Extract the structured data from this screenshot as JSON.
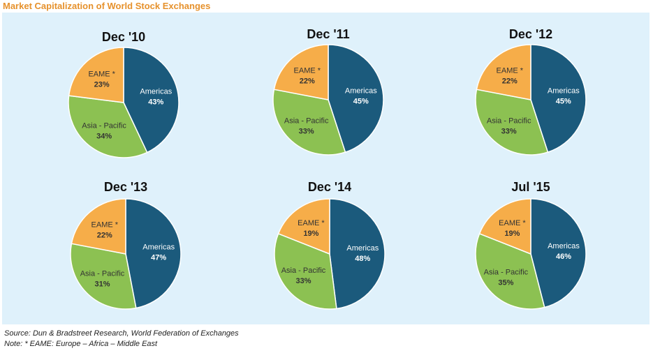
{
  "title": "Market Capitalization of World Stock Exchanges",
  "colors": {
    "americas": "#1b5a7c",
    "asia_pacific": "#8cc152",
    "eame": "#f6ad49",
    "panel": "#dff1fb",
    "title": "#e6912c"
  },
  "chart_data": [
    {
      "type": "pie",
      "title": "Dec '10",
      "slices": [
        {
          "label": "Americas",
          "value": 43,
          "display": "43%"
        },
        {
          "label": "Asia - Pacific",
          "value": 34,
          "display": "34%"
        },
        {
          "label": "EAME *",
          "value": 23,
          "display": "23%"
        }
      ]
    },
    {
      "type": "pie",
      "title": "Dec '11",
      "slices": [
        {
          "label": "Americas",
          "value": 45,
          "display": "45%"
        },
        {
          "label": "Asia - Pacific",
          "value": 33,
          "display": "33%"
        },
        {
          "label": "EAME *",
          "value": 22,
          "display": "22%"
        }
      ]
    },
    {
      "type": "pie",
      "title": "Dec '12",
      "slices": [
        {
          "label": "Americas",
          "value": 45,
          "display": "45%"
        },
        {
          "label": "Asia - Pacific",
          "value": 33,
          "display": "33%"
        },
        {
          "label": "EAME *",
          "value": 22,
          "display": "22%"
        }
      ]
    },
    {
      "type": "pie",
      "title": "Dec '13",
      "slices": [
        {
          "label": "Americas",
          "value": 47,
          "display": "47%"
        },
        {
          "label": "Asia - Pacific",
          "value": 31,
          "display": "31%"
        },
        {
          "label": "EAME *",
          "value": 22,
          "display": "22%"
        }
      ]
    },
    {
      "type": "pie",
      "title": "Dec '14",
      "slices": [
        {
          "label": "Americas",
          "value": 48,
          "display": "48%"
        },
        {
          "label": "Asia - Pacific",
          "value": 33,
          "display": "33%"
        },
        {
          "label": "EAME *",
          "value": 19,
          "display": "19%"
        }
      ]
    },
    {
      "type": "pie",
      "title": "Jul '15",
      "slices": [
        {
          "label": "Americas",
          "value": 46,
          "display": "46%"
        },
        {
          "label": "Asia - Pacific",
          "value": 35,
          "display": "35%"
        },
        {
          "label": "EAME *",
          "value": 19,
          "display": "19%"
        }
      ]
    }
  ],
  "source": "Source: Dun & Bradstreet Research, World Federation of Exchanges",
  "note": "Note: * EAME: Europe – Africa – Middle East"
}
